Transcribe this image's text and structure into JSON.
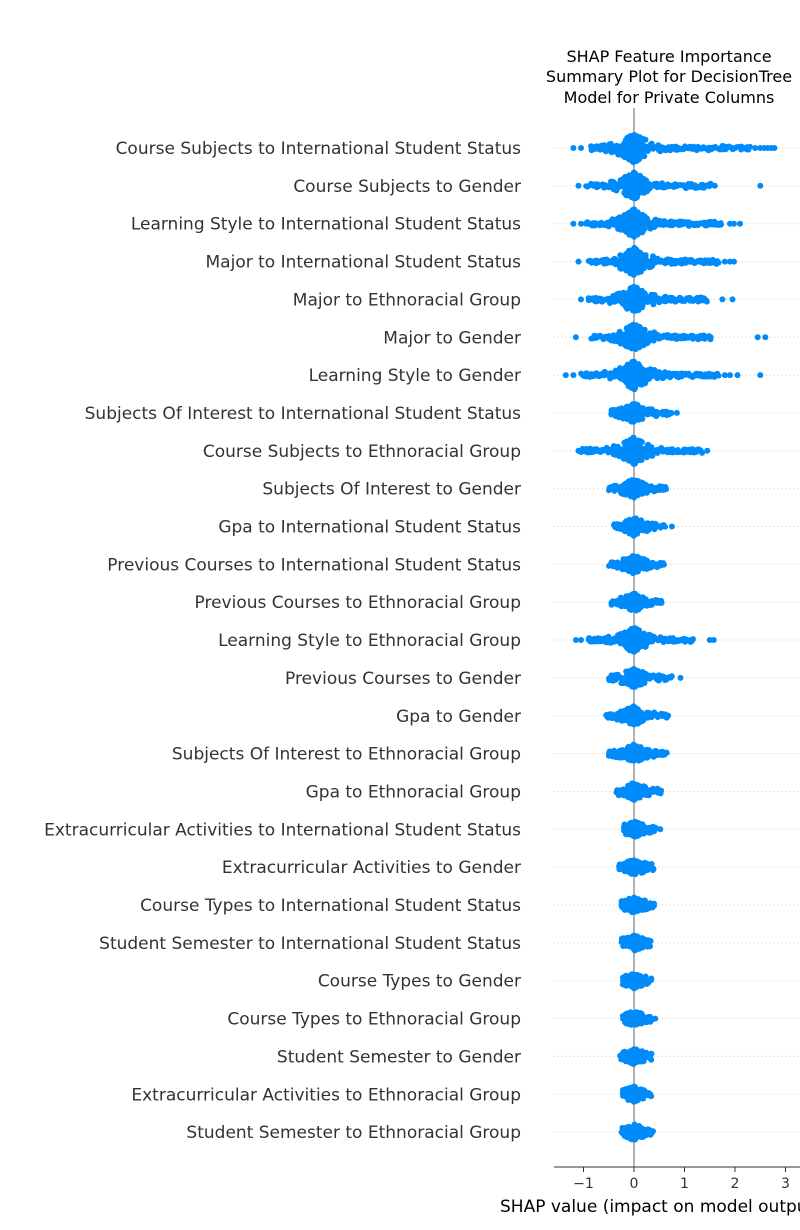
{
  "chart_data": {
    "type": "scatter",
    "subtype": "shap-summary-beeswarm",
    "title_lines": [
      "SHAP Feature Importance",
      "Summary Plot for DecisionTree",
      "Model for Private Columns"
    ],
    "xlabel": "SHAP value (impact on model output)",
    "xlim": [
      -1.6,
      3.0
    ],
    "xticks": [
      -1,
      0,
      1,
      2,
      3
    ],
    "xtick_labels": [
      "−1",
      "0",
      "1",
      "2",
      "3"
    ],
    "color": "#008bfb",
    "grid": "dotted-row-lines",
    "features": [
      {
        "name": "Course Subjects to International Student Status",
        "core_min": -0.85,
        "core_max": 2.3,
        "outliers": [
          -1.2,
          -1.05,
          2.4,
          2.5,
          2.58,
          2.65,
          2.72,
          2.78
        ]
      },
      {
        "name": "Course Subjects to Gender",
        "core_min": -0.95,
        "core_max": 1.55,
        "outliers": [
          -1.1,
          1.6,
          2.5
        ]
      },
      {
        "name": "Learning Style to International Student Status",
        "core_min": -0.95,
        "core_max": 1.75,
        "outliers": [
          -1.2,
          -1.05,
          1.9,
          1.98,
          2.1
        ]
      },
      {
        "name": "Major to International Student Status",
        "core_min": -0.9,
        "core_max": 1.7,
        "outliers": [
          -1.1,
          1.8,
          1.9,
          1.98
        ]
      },
      {
        "name": "Major to Ethnoracial Group",
        "core_min": -0.9,
        "core_max": 1.45,
        "outliers": [
          -1.05,
          1.75,
          1.95
        ]
      },
      {
        "name": "Major to Gender",
        "core_min": -0.85,
        "core_max": 1.55,
        "outliers": [
          -1.15,
          2.45,
          2.6
        ]
      },
      {
        "name": "Learning Style to Gender",
        "core_min": -1.05,
        "core_max": 1.7,
        "outliers": [
          -1.35,
          -1.2,
          1.8,
          1.9,
          2.05,
          2.5
        ]
      },
      {
        "name": "Subjects Of Interest to International Student Status",
        "core_min": -0.45,
        "core_max": 0.75,
        "outliers": [
          0.85
        ]
      },
      {
        "name": "Course Subjects to Ethnoracial Group",
        "core_min": -1.05,
        "core_max": 1.35,
        "outliers": [
          -1.1,
          1.45
        ]
      },
      {
        "name": "Subjects Of Interest to Gender",
        "core_min": -0.5,
        "core_max": 0.65,
        "outliers": []
      },
      {
        "name": "Gpa to International Student Status",
        "core_min": -0.4,
        "core_max": 0.65,
        "outliers": [
          0.75
        ]
      },
      {
        "name": "Previous Courses to International Student Status",
        "core_min": -0.5,
        "core_max": 0.6,
        "outliers": []
      },
      {
        "name": "Previous Courses to Ethnoracial Group",
        "core_min": -0.45,
        "core_max": 0.55,
        "outliers": []
      },
      {
        "name": "Learning Style to Ethnoracial Group",
        "core_min": -0.9,
        "core_max": 1.2,
        "outliers": [
          -1.15,
          -1.05,
          1.5,
          1.58
        ]
      },
      {
        "name": "Previous Courses to Gender",
        "core_min": -0.5,
        "core_max": 0.75,
        "outliers": [
          0.92
        ]
      },
      {
        "name": "Gpa to Gender",
        "core_min": -0.55,
        "core_max": 0.7,
        "outliers": []
      },
      {
        "name": "Subjects Of Interest to Ethnoracial Group",
        "core_min": -0.5,
        "core_max": 0.65,
        "outliers": []
      },
      {
        "name": "Gpa to Ethnoracial Group",
        "core_min": -0.35,
        "core_max": 0.55,
        "outliers": []
      },
      {
        "name": "Extracurricular Activities to International Student Status",
        "core_min": -0.2,
        "core_max": 0.45,
        "outliers": [
          0.52
        ]
      },
      {
        "name": "Extracurricular Activities to Gender",
        "core_min": -0.3,
        "core_max": 0.42,
        "outliers": []
      },
      {
        "name": "Course Types to International Student Status",
        "core_min": -0.25,
        "core_max": 0.4,
        "outliers": []
      },
      {
        "name": "Student Semester to International Student Status",
        "core_min": -0.25,
        "core_max": 0.35,
        "outliers": []
      },
      {
        "name": "Course Types to Gender",
        "core_min": -0.22,
        "core_max": 0.35,
        "outliers": []
      },
      {
        "name": "Course Types to Ethnoracial Group",
        "core_min": -0.22,
        "core_max": 0.35,
        "outliers": [
          0.42
        ]
      },
      {
        "name": "Student Semester to Gender",
        "core_min": -0.28,
        "core_max": 0.35,
        "outliers": []
      },
      {
        "name": "Extracurricular Activities to Ethnoracial Group",
        "core_min": -0.22,
        "core_max": 0.35,
        "outliers": []
      },
      {
        "name": "Student Semester to Ethnoracial Group",
        "core_min": -0.25,
        "core_max": 0.38,
        "outliers": []
      }
    ]
  }
}
